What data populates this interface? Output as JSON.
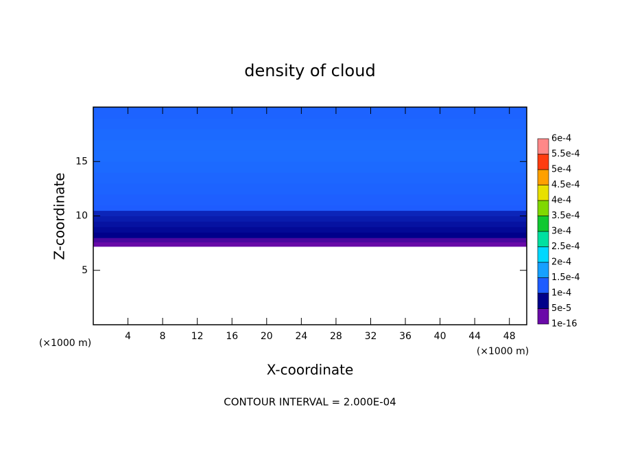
{
  "chart_data": {
    "type": "contour",
    "title": "density of cloud",
    "xlabel": "X-coordinate",
    "ylabel": "Z-coordinate",
    "x_unit_left": "(×1000 m)",
    "x_unit_right": "(×1000 m)",
    "note": "CONTOUR INTERVAL = 2.000E-04",
    "xlim": [
      0,
      50
    ],
    "ylim": [
      0,
      20
    ],
    "xticks": [
      4,
      8,
      12,
      16,
      20,
      24,
      28,
      32,
      36,
      40,
      44,
      48
    ],
    "yticks": [
      5,
      10,
      15
    ],
    "profile": {
      "z": [
        7.2,
        7.6,
        8,
        8.5,
        9,
        9.5,
        10,
        10.5,
        11,
        12,
        13,
        14,
        15,
        16,
        17,
        18,
        19,
        20
      ],
      "values": [
        2e-06,
        3e-05,
        5e-05,
        6e-05,
        7e-05,
        8e-05,
        9e-05,
        0.0001,
        0.000105,
        0.00011,
        0.000115,
        0.00012,
        0.000125,
        0.000125,
        0.00012,
        0.000115,
        0.00011,
        0.00011
      ]
    },
    "colorbar": {
      "ticks": [
        {
          "value": 1e-16,
          "label": "1e-16"
        },
        {
          "value": 5e-05,
          "label": "5e-5"
        },
        {
          "value": 0.0001,
          "label": "1e-4"
        },
        {
          "value": 0.00015,
          "label": "1.5e-4"
        },
        {
          "value": 0.0002,
          "label": "2e-4"
        },
        {
          "value": 0.00025,
          "label": "2.5e-4"
        },
        {
          "value": 0.0003,
          "label": "3e-4"
        },
        {
          "value": 0.00035,
          "label": "3.5e-4"
        },
        {
          "value": 0.0004,
          "label": "4e-4"
        },
        {
          "value": 0.00045,
          "label": "4.5e-4"
        },
        {
          "value": 0.0005,
          "label": "5e-4"
        },
        {
          "value": 0.00055,
          "label": "5.5e-4"
        },
        {
          "value": 0.0006,
          "label": "6e-4"
        }
      ],
      "colors": [
        "#6a0aa8",
        "#00008a",
        "#1e5cff",
        "#16a0ff",
        "#00d8ff",
        "#00e0a0",
        "#10c830",
        "#80d800",
        "#e8e000",
        "#ffa000",
        "#ff3c10",
        "#ff8888"
      ]
    }
  }
}
